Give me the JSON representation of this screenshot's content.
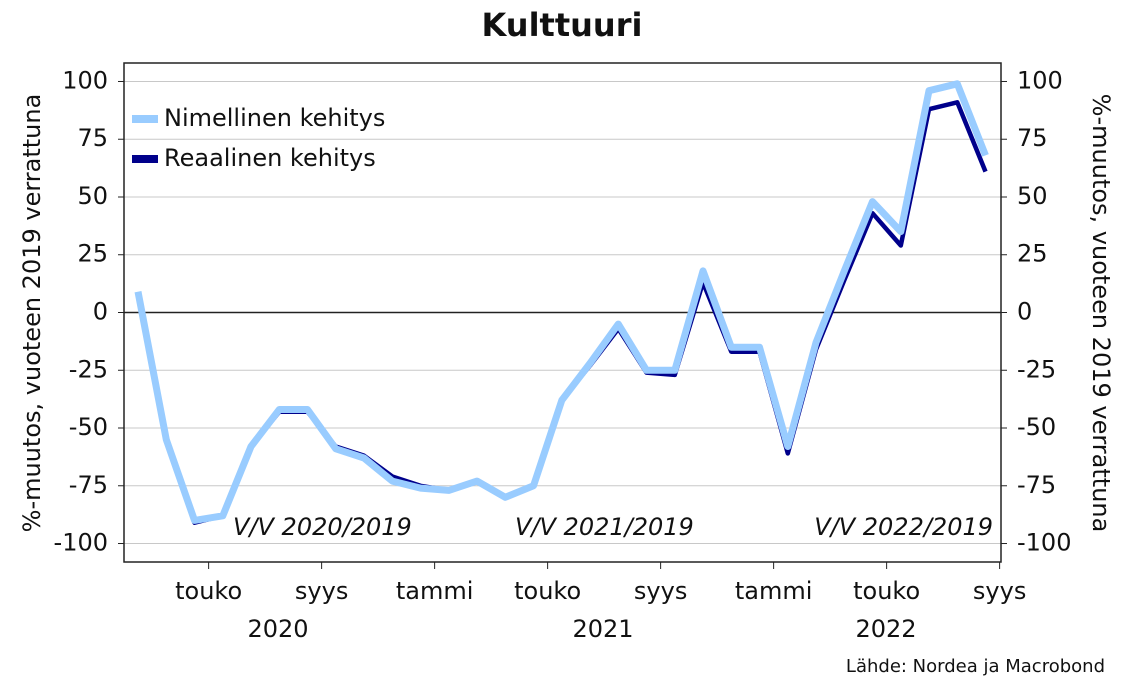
{
  "chart_data": {
    "type": "line",
    "title": "Kulttuuri",
    "y_label": "%-muutos, vuoteen 2019 verrattuna",
    "y2_label": "%-muutos, vuoteen 2019 verrattuna",
    "source": "Lähde: Nordea ja Macrobond",
    "annotations": [
      "V/V 2020/2019",
      "V/V 2021/2019",
      "V/V 2022/2019"
    ],
    "years": [
      "2020",
      "2021",
      "2022"
    ],
    "categories": [
      null,
      null,
      null,
      "touko",
      null,
      null,
      null,
      "syys",
      null,
      null,
      null,
      "tammi",
      null,
      null,
      null,
      "touko",
      null,
      null,
      null,
      "syys",
      null,
      null,
      null,
      "tammi",
      null,
      null,
      null,
      "touko",
      null,
      null,
      null,
      "syys"
    ],
    "series": [
      {
        "name": "Nimellinen kehitys",
        "color": "#99ccff",
        "values": [
          9,
          -55,
          -90,
          -88,
          -58,
          -42,
          -42,
          -59,
          -63,
          -73,
          -76,
          -77,
          -73,
          -80,
          -75,
          -38,
          -22,
          -5,
          -25,
          -25,
          18,
          -15,
          -15,
          -58,
          -13,
          18,
          48,
          35,
          96,
          99,
          68,
          null
        ]
      },
      {
        "name": "Reaalinen kehitys",
        "color": "#00008b",
        "values": [
          8,
          -55,
          -91,
          -88,
          -58,
          -43,
          -43,
          -58,
          -62,
          -71,
          -75,
          -77,
          -73,
          -80,
          -75,
          -38,
          -23,
          -7,
          -26,
          -27,
          13,
          -17,
          -17,
          -61,
          -16,
          14,
          43,
          29,
          88,
          91,
          61,
          null
        ]
      }
    ],
    "ylim": [
      -108,
      108
    ],
    "yticks": [
      -100,
      -75,
      -50,
      -25,
      0,
      25,
      50,
      75,
      100
    ],
    "y2lim": [
      -108,
      108
    ],
    "y2ticks": [
      -100,
      -75,
      -50,
      -25,
      0,
      25,
      50,
      75,
      100
    ],
    "grid": true,
    "legend": "upper left"
  }
}
